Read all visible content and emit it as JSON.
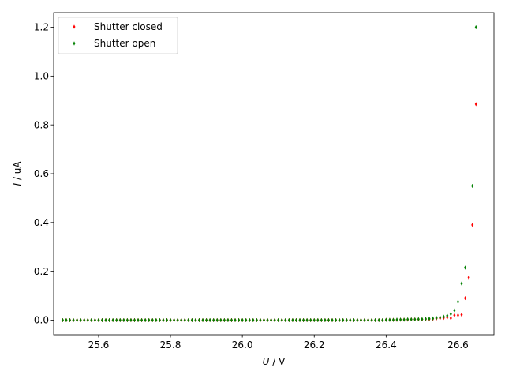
{
  "chart_data": {
    "type": "scatter",
    "title": "",
    "xlabel": {
      "var": "U",
      "unit": " / V"
    },
    "ylabel": {
      "var": "I",
      "unit": " / uA"
    },
    "xlim": [
      25.475,
      26.7
    ],
    "ylim": [
      -0.06,
      1.26
    ],
    "grid": false,
    "legend_position": "top-left",
    "x_ticks": [
      25.6,
      25.8,
      26.0,
      26.2,
      26.4,
      26.6
    ],
    "x_tick_labels": [
      "25.6",
      "25.8",
      "26.0",
      "26.2",
      "26.4",
      "26.6"
    ],
    "y_ticks": [
      0.0,
      0.2,
      0.4,
      0.6,
      0.8,
      1.0,
      1.2
    ],
    "y_tick_labels": [
      "0.0",
      "0.2",
      "0.4",
      "0.6",
      "0.8",
      "1.0",
      "1.2"
    ],
    "series": [
      {
        "name": "Shutter closed",
        "color": "#ff0000",
        "marker": "thin-diamond",
        "points": [
          [
            25.5,
            0
          ],
          [
            25.51,
            0
          ],
          [
            25.52,
            0
          ],
          [
            25.53,
            0
          ],
          [
            25.54,
            0
          ],
          [
            25.55,
            0
          ],
          [
            25.56,
            0
          ],
          [
            25.57,
            0
          ],
          [
            25.58,
            0
          ],
          [
            25.59,
            0
          ],
          [
            25.6,
            0
          ],
          [
            25.61,
            0
          ],
          [
            25.62,
            0
          ],
          [
            25.63,
            0
          ],
          [
            25.64,
            0
          ],
          [
            25.65,
            0
          ],
          [
            25.66,
            0
          ],
          [
            25.67,
            0
          ],
          [
            25.68,
            0
          ],
          [
            25.69,
            0
          ],
          [
            25.7,
            0
          ],
          [
            25.71,
            0
          ],
          [
            25.72,
            0
          ],
          [
            25.73,
            0
          ],
          [
            25.74,
            0
          ],
          [
            25.75,
            0
          ],
          [
            25.76,
            0
          ],
          [
            25.77,
            0
          ],
          [
            25.78,
            0
          ],
          [
            25.79,
            0
          ],
          [
            25.8,
            0
          ],
          [
            25.81,
            0
          ],
          [
            25.82,
            0
          ],
          [
            25.83,
            0
          ],
          [
            25.84,
            0
          ],
          [
            25.85,
            0
          ],
          [
            25.86,
            0
          ],
          [
            25.87,
            0
          ],
          [
            25.88,
            0
          ],
          [
            25.89,
            0
          ],
          [
            25.9,
            0
          ],
          [
            25.91,
            0
          ],
          [
            25.92,
            0
          ],
          [
            25.93,
            0
          ],
          [
            25.94,
            0
          ],
          [
            25.95,
            0
          ],
          [
            25.96,
            0
          ],
          [
            25.97,
            0
          ],
          [
            25.98,
            0
          ],
          [
            25.99,
            0
          ],
          [
            26.0,
            0
          ],
          [
            26.01,
            0
          ],
          [
            26.02,
            0
          ],
          [
            26.03,
            0
          ],
          [
            26.04,
            0
          ],
          [
            26.05,
            0
          ],
          [
            26.06,
            0
          ],
          [
            26.07,
            0
          ],
          [
            26.08,
            0
          ],
          [
            26.09,
            0
          ],
          [
            26.1,
            0
          ],
          [
            26.11,
            0
          ],
          [
            26.12,
            0
          ],
          [
            26.13,
            0
          ],
          [
            26.14,
            0
          ],
          [
            26.15,
            0
          ],
          [
            26.16,
            0
          ],
          [
            26.17,
            0
          ],
          [
            26.18,
            0
          ],
          [
            26.19,
            0
          ],
          [
            26.2,
            0
          ],
          [
            26.21,
            0
          ],
          [
            26.22,
            0
          ],
          [
            26.23,
            0
          ],
          [
            26.24,
            0
          ],
          [
            26.25,
            0
          ],
          [
            26.26,
            0
          ],
          [
            26.27,
            0
          ],
          [
            26.28,
            0
          ],
          [
            26.29,
            0
          ],
          [
            26.3,
            0
          ],
          [
            26.31,
            0
          ],
          [
            26.32,
            0
          ],
          [
            26.33,
            0
          ],
          [
            26.34,
            0
          ],
          [
            26.35,
            0
          ],
          [
            26.36,
            0
          ],
          [
            26.37,
            0
          ],
          [
            26.38,
            0
          ],
          [
            26.39,
            0
          ],
          [
            26.4,
            0.001
          ],
          [
            26.41,
            0.001
          ],
          [
            26.42,
            0.001
          ],
          [
            26.43,
            0.001
          ],
          [
            26.44,
            0.002
          ],
          [
            26.45,
            0.002
          ],
          [
            26.46,
            0.002
          ],
          [
            26.47,
            0.003
          ],
          [
            26.48,
            0.003
          ],
          [
            26.49,
            0.003
          ],
          [
            26.5,
            0.003
          ],
          [
            26.51,
            0.004
          ],
          [
            26.52,
            0.004
          ],
          [
            26.53,
            0.005
          ],
          [
            26.54,
            0.007
          ],
          [
            26.55,
            0.008
          ],
          [
            26.56,
            0.009
          ],
          [
            26.57,
            0.011
          ],
          [
            26.58,
            0.008
          ],
          [
            26.59,
            0.02
          ],
          [
            26.6,
            0.02
          ],
          [
            26.61,
            0.022
          ],
          [
            26.62,
            0.09
          ],
          [
            26.63,
            0.175
          ],
          [
            26.64,
            0.39
          ],
          [
            26.65,
            0.885
          ]
        ]
      },
      {
        "name": "Shutter open",
        "color": "#008000",
        "marker": "thin-diamond",
        "points": [
          [
            25.5,
            0
          ],
          [
            25.51,
            0
          ],
          [
            25.52,
            0
          ],
          [
            25.53,
            0
          ],
          [
            25.54,
            0
          ],
          [
            25.55,
            0
          ],
          [
            25.56,
            0
          ],
          [
            25.57,
            0
          ],
          [
            25.58,
            0
          ],
          [
            25.59,
            0
          ],
          [
            25.6,
            0
          ],
          [
            25.61,
            0
          ],
          [
            25.62,
            0
          ],
          [
            25.63,
            0
          ],
          [
            25.64,
            0
          ],
          [
            25.65,
            0
          ],
          [
            25.66,
            0
          ],
          [
            25.67,
            0
          ],
          [
            25.68,
            0
          ],
          [
            25.69,
            0
          ],
          [
            25.7,
            0
          ],
          [
            25.71,
            0
          ],
          [
            25.72,
            0
          ],
          [
            25.73,
            0
          ],
          [
            25.74,
            0
          ],
          [
            25.75,
            0
          ],
          [
            25.76,
            0
          ],
          [
            25.77,
            0
          ],
          [
            25.78,
            0
          ],
          [
            25.79,
            0
          ],
          [
            25.8,
            0
          ],
          [
            25.81,
            0
          ],
          [
            25.82,
            0
          ],
          [
            25.83,
            0
          ],
          [
            25.84,
            0
          ],
          [
            25.85,
            0
          ],
          [
            25.86,
            0
          ],
          [
            25.87,
            0
          ],
          [
            25.88,
            0
          ],
          [
            25.89,
            0
          ],
          [
            25.9,
            0
          ],
          [
            25.91,
            0
          ],
          [
            25.92,
            0
          ],
          [
            25.93,
            0
          ],
          [
            25.94,
            0
          ],
          [
            25.95,
            0
          ],
          [
            25.96,
            0
          ],
          [
            25.97,
            0
          ],
          [
            25.98,
            0
          ],
          [
            25.99,
            0
          ],
          [
            26.0,
            0
          ],
          [
            26.01,
            0
          ],
          [
            26.02,
            0
          ],
          [
            26.03,
            0
          ],
          [
            26.04,
            0
          ],
          [
            26.05,
            0
          ],
          [
            26.06,
            0
          ],
          [
            26.07,
            0
          ],
          [
            26.08,
            0
          ],
          [
            26.09,
            0
          ],
          [
            26.1,
            0
          ],
          [
            26.11,
            0
          ],
          [
            26.12,
            0
          ],
          [
            26.13,
            0
          ],
          [
            26.14,
            0
          ],
          [
            26.15,
            0
          ],
          [
            26.16,
            0
          ],
          [
            26.17,
            0
          ],
          [
            26.18,
            0
          ],
          [
            26.19,
            0
          ],
          [
            26.2,
            0
          ],
          [
            26.21,
            0
          ],
          [
            26.22,
            0
          ],
          [
            26.23,
            0
          ],
          [
            26.24,
            0
          ],
          [
            26.25,
            0
          ],
          [
            26.26,
            0
          ],
          [
            26.27,
            0
          ],
          [
            26.28,
            0
          ],
          [
            26.29,
            0
          ],
          [
            26.3,
            0
          ],
          [
            26.31,
            0
          ],
          [
            26.32,
            0
          ],
          [
            26.33,
            0
          ],
          [
            26.34,
            0
          ],
          [
            26.35,
            0
          ],
          [
            26.36,
            0
          ],
          [
            26.37,
            0
          ],
          [
            26.38,
            0
          ],
          [
            26.39,
            0
          ],
          [
            26.4,
            0.001
          ],
          [
            26.41,
            0.001
          ],
          [
            26.42,
            0.001
          ],
          [
            26.43,
            0.002
          ],
          [
            26.44,
            0.002
          ],
          [
            26.45,
            0.002
          ],
          [
            26.46,
            0.003
          ],
          [
            26.47,
            0.003
          ],
          [
            26.48,
            0.003
          ],
          [
            26.49,
            0.004
          ],
          [
            26.5,
            0.004
          ],
          [
            26.51,
            0.005
          ],
          [
            26.52,
            0.006
          ],
          [
            26.53,
            0.007
          ],
          [
            26.54,
            0.009
          ],
          [
            26.55,
            0.011
          ],
          [
            26.56,
            0.014
          ],
          [
            26.57,
            0.018
          ],
          [
            26.58,
            0.025
          ],
          [
            26.59,
            0.04
          ],
          [
            26.6,
            0.075
          ],
          [
            26.61,
            0.15
          ],
          [
            26.62,
            0.215
          ],
          [
            26.64,
            0.55
          ],
          [
            26.65,
            1.2
          ]
        ]
      }
    ]
  }
}
